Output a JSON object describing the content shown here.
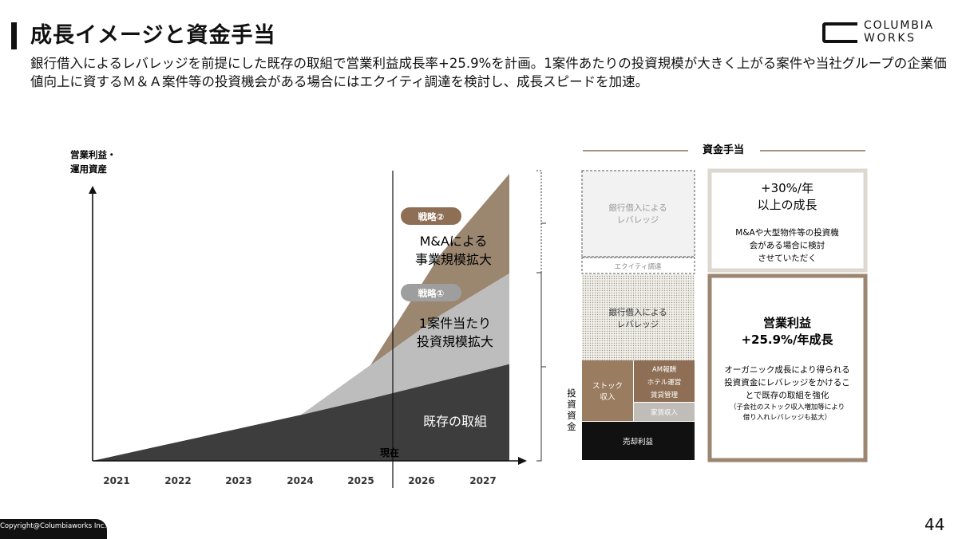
{
  "header": {
    "title": "成長イメージと資金手当",
    "subtitle": "銀行借入によるレバレッジを前提にした既存の取組で営業利益成長率+25.9%を計画。1案件あたりの投資規模が大きく上がる案件や当社グループの企業価値向上に資するＭ＆Ａ案件等の投資機会がある場合にはエクイティ調達を検討し、成長スピードを加速。"
  },
  "logo": {
    "line1": "COLUMBIA",
    "line2": "WORKS"
  },
  "chart_data": {
    "type": "area",
    "ylabel_line1": "営業利益・",
    "ylabel_line2": "運用資産",
    "categories": [
      "2021",
      "2022",
      "2023",
      "2024",
      "2025",
      "2026",
      "2027"
    ],
    "current_marker": {
      "label": "現在",
      "position": "2025-2026"
    },
    "series": [
      {
        "name": "既存の取組",
        "values": [
          0,
          16,
          32,
          48,
          65,
          83,
          101
        ]
      },
      {
        "name": "1案件当たり投資規模拡大",
        "values": [
          0,
          16,
          32,
          48,
          100,
          152,
          196
        ]
      },
      {
        "name": "M&Aによる事業規模拡大",
        "values": [
          0,
          16,
          32,
          48,
          100,
          215,
          300
        ]
      }
    ],
    "annotations": [
      {
        "badge": "戦略②",
        "line1": "M&Aによる",
        "line2": "事業規模拡大"
      },
      {
        "badge": "戦略①",
        "line1": "1案件当たり",
        "line2": "投資規模拡大"
      },
      {
        "line1": "既存の取組"
      }
    ],
    "colors": {
      "existing": "#3d3d3d",
      "strategy1": "#bdbdbd",
      "strategy2": "#9b8670"
    }
  },
  "funding": {
    "header": "資金手当",
    "stack": {
      "top_leverage_line1": "銀行借入による",
      "top_leverage_line2": "レバレッジ",
      "equity": "エクイティ調達",
      "mid_leverage_line1": "銀行借入による",
      "mid_leverage_line2": "レバレッジ",
      "stock_line1": "ストック",
      "stock_line2": "収入",
      "am_fee": "AM報酬",
      "hotel": "ホテル運営",
      "lease_mgmt": "賃貸管理",
      "rent_income": "家賃収入",
      "sale_profit": "売却利益",
      "side_label": [
        "投",
        "資",
        "資",
        "金"
      ]
    },
    "growth_box": {
      "line1": "+30%/年",
      "line2": "以上の成長",
      "desc1": "M&Aや大型物件等の投資機",
      "desc2": "会がある場合に検討",
      "desc3": "させていただく"
    },
    "profit_box": {
      "line1": "営業利益",
      "line2": "+25.9%/年成長",
      "desc1": "オーガニック成長により得られる",
      "desc2": "投資資金にレバレッジをかけるこ",
      "desc3": "とで既存の取組を強化",
      "note1": "（子会社のストック収入増加等により",
      "note2": "借り入れレバレッジも拡大）"
    }
  },
  "footer": {
    "copyright": "Copyright@Columbiaworks Inc.",
    "page": "44"
  }
}
